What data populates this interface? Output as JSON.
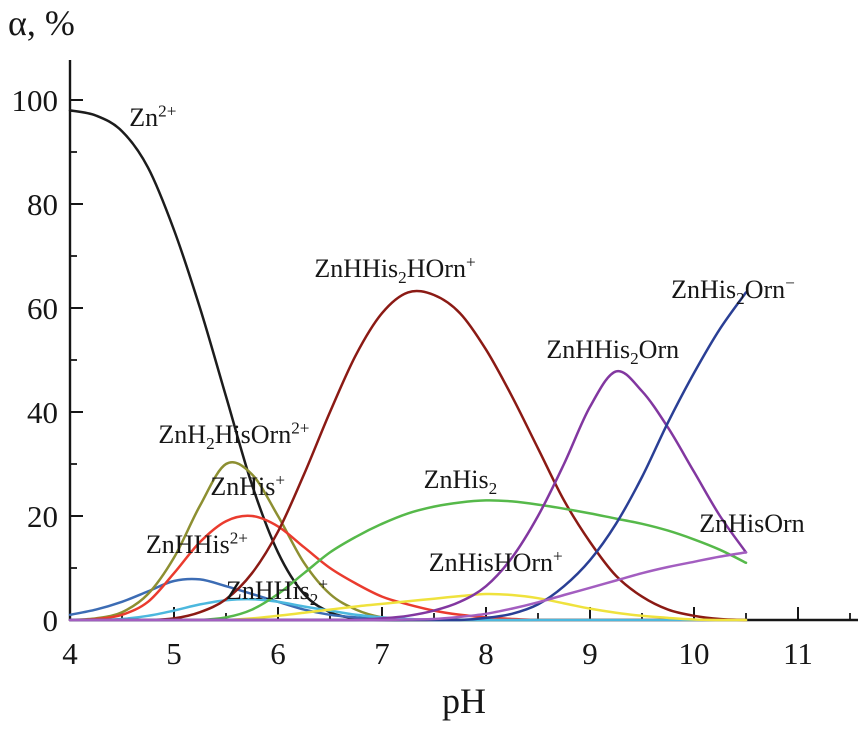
{
  "chart_data": {
    "type": "line",
    "title": "",
    "xlabel": "pH",
    "ylabel": "α, %",
    "xlim": [
      4,
      11.6
    ],
    "ylim": [
      0,
      108
    ],
    "grid": false,
    "legend_position": "inline-annotations",
    "x_ticks": [
      4,
      5,
      6,
      7,
      8,
      9,
      10,
      11
    ],
    "y_ticks": [
      0,
      20,
      40,
      60,
      80,
      100
    ],
    "x": [
      4,
      4.25,
      4.5,
      4.75,
      5,
      5.25,
      5.5,
      5.75,
      6,
      6.25,
      6.5,
      6.75,
      7,
      7.25,
      7.5,
      7.75,
      8,
      8.25,
      8.5,
      8.75,
      9,
      9.25,
      9.5,
      9.75,
      10,
      10.25,
      10.5
    ],
    "series": [
      {
        "name": "Zn^2+^",
        "color": "#1c1c1c",
        "label_at": [
          4.57,
          96.5
        ],
        "values": [
          98,
          97,
          94,
          87,
          75,
          60,
          43,
          26,
          13,
          5,
          1.5,
          0.3,
          0,
          0,
          0,
          0,
          0,
          0,
          0,
          0,
          0,
          0,
          0,
          0,
          0,
          0,
          0
        ]
      },
      {
        "name": "ZnHHis^2+^",
        "color": "#3c6cb4",
        "label_at": [
          4.73,
          14.5
        ],
        "values": [
          1,
          2,
          3.5,
          5.5,
          7.5,
          7.8,
          6.5,
          5,
          3.5,
          2,
          1,
          0.5,
          0.2,
          0,
          0,
          0,
          0,
          0,
          0,
          0,
          0,
          0,
          0,
          0,
          0,
          0,
          0
        ]
      },
      {
        "name": "ZnH_2_HisOrn^2+^",
        "color": "#8d8f31",
        "label_at": [
          4.85,
          35.5
        ],
        "values": [
          0,
          0.3,
          1.5,
          5,
          12,
          22,
          30,
          28,
          20,
          11,
          5,
          2,
          0.5,
          0,
          0,
          0,
          0,
          0,
          0,
          0,
          0,
          0,
          0,
          0,
          0,
          0,
          0
        ]
      },
      {
        "name": "ZnHis^+^",
        "color": "#ea3b2e",
        "label_at": [
          5.35,
          25.5
        ],
        "values": [
          0,
          0.2,
          1,
          3.5,
          9,
          15,
          19,
          20,
          18,
          14,
          10,
          7,
          4.5,
          3,
          1.8,
          1,
          0.5,
          0.2,
          0,
          0,
          0,
          0,
          0,
          0,
          0,
          0,
          0
        ]
      },
      {
        "name": "ZnHHis_2_^+^",
        "color": "#4cb8de",
        "label_at": [
          5.5,
          5.5
        ],
        "values": [
          0,
          0,
          0.2,
          0.8,
          1.8,
          3,
          3.8,
          4,
          3.5,
          2.6,
          1.8,
          1,
          0.5,
          0.2,
          0,
          0,
          0,
          0,
          0,
          0,
          0,
          0,
          0,
          0,
          0,
          0,
          0
        ]
      },
      {
        "name": "ZnHHis_2_HOrn^+^",
        "color": "#8b1a14",
        "label_at": [
          6.35,
          67.5
        ],
        "values": [
          0,
          0,
          0,
          0,
          0.3,
          1.5,
          4,
          9,
          17,
          28,
          40,
          51,
          59,
          63,
          62.5,
          59,
          52,
          43,
          33,
          23,
          15,
          8.5,
          4.5,
          2,
          0.8,
          0.2,
          0
        ]
      },
      {
        "name": "ZnHis_2_",
        "color": "#56b94a",
        "label_at": [
          7.4,
          27
        ],
        "values": [
          0,
          0,
          0,
          0,
          0,
          0,
          0.5,
          2,
          5,
          9,
          13,
          16,
          18.5,
          20.5,
          21.8,
          22.6,
          23,
          22.8,
          22.2,
          21.4,
          20.5,
          19.5,
          18.5,
          17.2,
          15.5,
          13.5,
          11
        ]
      },
      {
        "name": "ZnHisHOrn^+^",
        "color": "#efe23d",
        "label_at": [
          7.45,
          11
        ],
        "values": [
          0,
          0,
          0,
          0,
          0,
          0,
          0,
          0.3,
          0.8,
          1.4,
          2,
          2.6,
          3.1,
          3.6,
          4.1,
          4.6,
          5,
          4.8,
          4.2,
          3.2,
          2.2,
          1.4,
          0.8,
          0.4,
          0.1,
          0,
          0
        ]
      },
      {
        "name": "ZnHHis_2_Orn",
        "color": "#8237a0",
        "label_at": [
          8.58,
          52
        ],
        "values": [
          0,
          0,
          0,
          0,
          0,
          0,
          0,
          0,
          0,
          0,
          0,
          0,
          0.3,
          0.8,
          1.8,
          3.5,
          6.5,
          12,
          20,
          30,
          41,
          47.8,
          44,
          37,
          28.5,
          20,
          13
        ]
      },
      {
        "name": "ZnHis_2_Orn^−^",
        "color": "#2a3f95",
        "label_at": [
          9.78,
          63.5
        ],
        "values": [
          0,
          0,
          0,
          0,
          0,
          0,
          0,
          0,
          0,
          0,
          0,
          0,
          0,
          0,
          0,
          0,
          0.4,
          1.2,
          3,
          6.5,
          11.5,
          18.5,
          27.5,
          38,
          47.5,
          56,
          63
        ]
      },
      {
        "name": "ZnHisOrn",
        "color": "#a35ec0",
        "label_at": [
          10.05,
          18.5
        ],
        "values": [
          0,
          0,
          0,
          0,
          0,
          0,
          0,
          0,
          0,
          0,
          0,
          0,
          0,
          0.1,
          0.2,
          0.6,
          1.2,
          2.2,
          3.4,
          4.8,
          6.2,
          7.6,
          9,
          10.2,
          11.2,
          12.2,
          13
        ]
      }
    ]
  }
}
